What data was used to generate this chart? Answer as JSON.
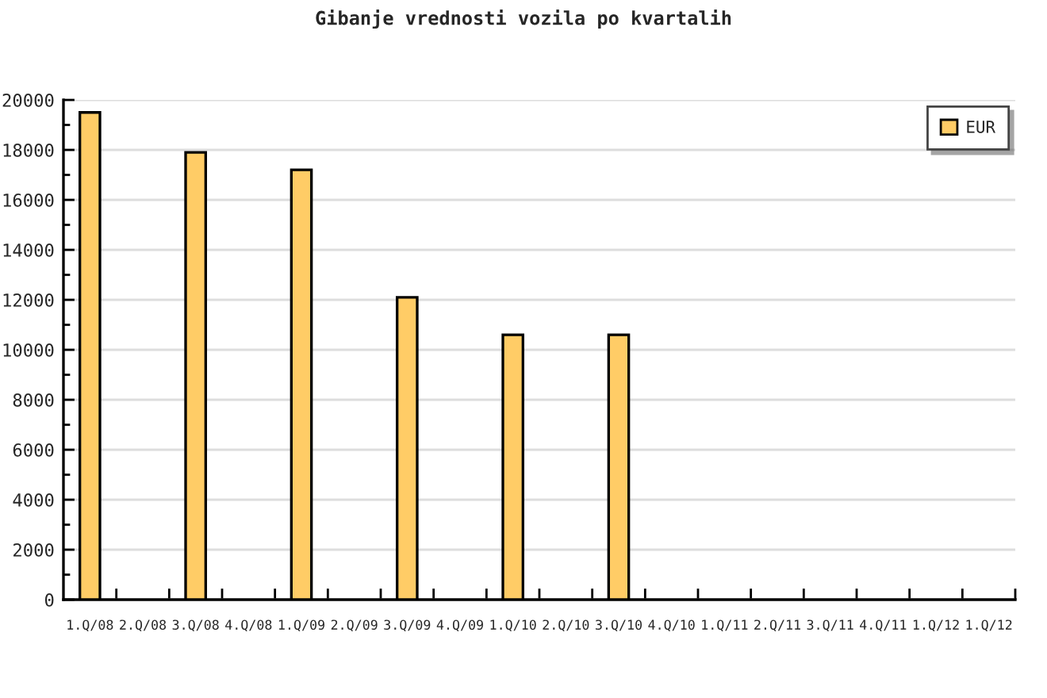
{
  "chart_data": {
    "type": "bar",
    "title": "Gibanje vrednosti vozila po kvartalih",
    "categories": [
      "1.Q/08",
      "2.Q/08",
      "3.Q/08",
      "4.Q/08",
      "1.Q/09",
      "2.Q/09",
      "3.Q/09",
      "4.Q/09",
      "1.Q/10",
      "2.Q/10",
      "3.Q/10",
      "4.Q/10",
      "1.Q/11",
      "2.Q/11",
      "3.Q/11",
      "4.Q/11",
      "1.Q/12",
      "1.Q/12"
    ],
    "series": [
      {
        "name": "EUR",
        "color": "#ffcc66",
        "values": [
          19500,
          null,
          17900,
          null,
          17200,
          null,
          12100,
          null,
          10600,
          null,
          10600,
          null,
          null,
          null,
          null,
          null,
          null,
          null
        ]
      }
    ],
    "ylim": [
      0,
      20000
    ],
    "yticks": [
      0,
      {
        "value": 1000,
        "label": null
      },
      2000,
      {
        "value": 3000,
        "label": null
      },
      4000,
      {
        "value": 5000,
        "label": null
      },
      6000,
      {
        "value": 7000,
        "label": null
      },
      8000,
      {
        "value": 9000,
        "label": null
      },
      10000,
      {
        "value": 11000,
        "label": null
      },
      12000,
      {
        "value": 13000,
        "label": null
      },
      14000,
      {
        "value": 15000,
        "label": null
      },
      16000,
      {
        "value": 17000,
        "label": null
      },
      18000,
      {
        "value": 19000,
        "label": null
      },
      20000
    ],
    "grid": "y",
    "legend": "top right"
  }
}
